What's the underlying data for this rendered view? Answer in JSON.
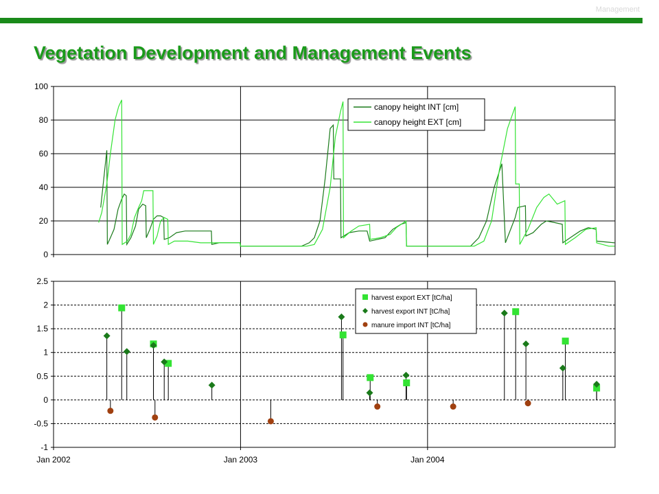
{
  "header": {
    "section_tag": "Management",
    "title": "Vegetation Development and Management Events"
  },
  "colors": {
    "dark_green": "#1a7a1a",
    "light_green": "#33e333",
    "brown": "#a04010",
    "bar": "#1a8a1a",
    "title": "#1a9a1a"
  },
  "chart_data": [
    {
      "type": "line",
      "x_axis": {
        "range": [
          "2002-01-01",
          "2005-01-01"
        ],
        "tick_labels": [
          "Jan 2002",
          "Jan 2003",
          "Jan 2004"
        ]
      },
      "ylim": [
        0,
        100
      ],
      "yticks": [
        0,
        20,
        40,
        60,
        80,
        100
      ],
      "grid": true,
      "legend": "top-right",
      "series": [
        {
          "name": "canopy height INT [cm]",
          "color": "dark_green",
          "points": [
            [
              "2002-04-03",
              28
            ],
            [
              "2002-04-15",
              62
            ],
            [
              "2002-04-16",
              6
            ],
            [
              "2002-04-22",
              10
            ],
            [
              "2002-04-29",
              15
            ],
            [
              "2002-05-07",
              27
            ],
            [
              "2002-05-14",
              33
            ],
            [
              "2002-05-19",
              36
            ],
            [
              "2002-05-23",
              35
            ],
            [
              "2002-05-24",
              6
            ],
            [
              "2002-06-01",
              10
            ],
            [
              "2002-06-10",
              17
            ],
            [
              "2002-06-16",
              27
            ],
            [
              "2002-06-24",
              30
            ],
            [
              "2002-06-30",
              29
            ],
            [
              "2002-07-01",
              10
            ],
            [
              "2002-07-08",
              15
            ],
            [
              "2002-07-15",
              21
            ],
            [
              "2002-07-22",
              23
            ],
            [
              "2002-07-29",
              23
            ],
            [
              "2002-08-04",
              22
            ],
            [
              "2002-08-05",
              9
            ],
            [
              "2002-08-15",
              10
            ],
            [
              "2002-08-29",
              13
            ],
            [
              "2002-09-15",
              14
            ],
            [
              "2002-10-15",
              14
            ],
            [
              "2002-11-05",
              14
            ],
            [
              "2002-11-06",
              6
            ],
            [
              "2002-11-20",
              7
            ],
            [
              "2002-12-31",
              7
            ],
            [
              "2003-01-01",
              5
            ],
            [
              "2003-04-30",
              5
            ],
            [
              "2003-05-15",
              7
            ],
            [
              "2003-05-25",
              10
            ],
            [
              "2003-06-05",
              20
            ],
            [
              "2003-06-15",
              45
            ],
            [
              "2003-06-25",
              75
            ],
            [
              "2003-07-01",
              77
            ],
            [
              "2003-07-02",
              45
            ],
            [
              "2003-07-15",
              45
            ],
            [
              "2003-07-16",
              10
            ],
            [
              "2003-08-01",
              13
            ],
            [
              "2003-08-20",
              14
            ],
            [
              "2003-09-05",
              14
            ],
            [
              "2003-09-10",
              8
            ],
            [
              "2003-09-25",
              9
            ],
            [
              "2003-10-10",
              10
            ],
            [
              "2003-10-25",
              15
            ],
            [
              "2003-11-10",
              18
            ],
            [
              "2003-11-20",
              19
            ],
            [
              "2003-11-21",
              5
            ],
            [
              "2003-12-31",
              5
            ],
            [
              "2004-01-01",
              5
            ],
            [
              "2004-03-25",
              5
            ],
            [
              "2004-04-10",
              10
            ],
            [
              "2004-04-25",
              20
            ],
            [
              "2004-05-10",
              40
            ],
            [
              "2004-05-25",
              54
            ],
            [
              "2004-06-01",
              7
            ],
            [
              "2004-06-20",
              22
            ],
            [
              "2004-06-25",
              28
            ],
            [
              "2004-07-10",
              29
            ],
            [
              "2004-07-11",
              11
            ],
            [
              "2004-07-25",
              13
            ],
            [
              "2004-08-10",
              18
            ],
            [
              "2004-08-20",
              20
            ],
            [
              "2004-09-05",
              19
            ],
            [
              "2004-09-20",
              18
            ],
            [
              "2004-09-21",
              7
            ],
            [
              "2004-10-10",
              11
            ],
            [
              "2004-10-25",
              14
            ],
            [
              "2004-11-10",
              16
            ],
            [
              "2004-11-25",
              15
            ],
            [
              "2004-11-26",
              8
            ],
            [
              "2004-12-31",
              7
            ]
          ]
        },
        {
          "name": "canopy height EXT [cm]",
          "color": "light_green",
          "points": [
            [
              "2002-03-30",
              19
            ],
            [
              "2002-04-05",
              25
            ],
            [
              "2002-04-15",
              42
            ],
            [
              "2002-04-22",
              60
            ],
            [
              "2002-05-01",
              80
            ],
            [
              "2002-05-08",
              88
            ],
            [
              "2002-05-14",
              92
            ],
            [
              "2002-05-15",
              6
            ],
            [
              "2002-05-25",
              8
            ],
            [
              "2002-06-01",
              12
            ],
            [
              "2002-06-08",
              22
            ],
            [
              "2002-06-16",
              28
            ],
            [
              "2002-06-22",
              32
            ],
            [
              "2002-06-26",
              38
            ],
            [
              "2002-07-14",
              38
            ],
            [
              "2002-07-15",
              6
            ],
            [
              "2002-07-22",
              11
            ],
            [
              "2002-07-29",
              20
            ],
            [
              "2002-08-05",
              22
            ],
            [
              "2002-08-12",
              21
            ],
            [
              "2002-08-13",
              6
            ],
            [
              "2002-08-25",
              8
            ],
            [
              "2002-09-20",
              8
            ],
            [
              "2002-10-15",
              7
            ],
            [
              "2002-11-10",
              7
            ],
            [
              "2002-12-31",
              7
            ],
            [
              "2003-01-01",
              5
            ],
            [
              "2003-05-10",
              5
            ],
            [
              "2003-05-25",
              6
            ],
            [
              "2003-06-10",
              15
            ],
            [
              "2003-06-25",
              40
            ],
            [
              "2003-07-05",
              70
            ],
            [
              "2003-07-15",
              85
            ],
            [
              "2003-07-20",
              91
            ],
            [
              "2003-07-21",
              10
            ],
            [
              "2003-08-05",
              14
            ],
            [
              "2003-08-20",
              17
            ],
            [
              "2003-09-10",
              18
            ],
            [
              "2003-09-11",
              9
            ],
            [
              "2003-10-01",
              10
            ],
            [
              "2003-10-20",
              12
            ],
            [
              "2003-11-01",
              16
            ],
            [
              "2003-11-20",
              20
            ],
            [
              "2003-11-21",
              5
            ],
            [
              "2003-12-31",
              5
            ],
            [
              "2004-01-01",
              5
            ],
            [
              "2004-04-01",
              5
            ],
            [
              "2004-04-20",
              8
            ],
            [
              "2004-05-05",
              20
            ],
            [
              "2004-05-20",
              50
            ],
            [
              "2004-06-05",
              75
            ],
            [
              "2004-06-20",
              88
            ],
            [
              "2004-06-21",
              42
            ],
            [
              "2004-06-28",
              42
            ],
            [
              "2004-06-29",
              6
            ],
            [
              "2004-07-15",
              15
            ],
            [
              "2004-08-01",
              28
            ],
            [
              "2004-08-15",
              34
            ],
            [
              "2004-08-25",
              36
            ],
            [
              "2004-09-10",
              30
            ],
            [
              "2004-09-25",
              32
            ],
            [
              "2004-09-26",
              6
            ],
            [
              "2004-10-15",
              10
            ],
            [
              "2004-11-05",
              15
            ],
            [
              "2004-11-25",
              16
            ],
            [
              "2004-11-26",
              7
            ],
            [
              "2004-12-20",
              5
            ],
            [
              "2004-12-31",
              5
            ]
          ]
        }
      ]
    },
    {
      "type": "scatter",
      "x_axis": {
        "range": [
          "2002-01-01",
          "2005-01-01"
        ],
        "tick_labels": [
          "Jan 2002",
          "Jan 2003",
          "Jan 2004"
        ]
      },
      "ylim": [
        -1,
        2.5
      ],
      "yticks": [
        -1,
        -0.5,
        0,
        0.5,
        1,
        1.5,
        2,
        2.5
      ],
      "ytick_labels": [
        "-1",
        "-0.5",
        "0",
        "0.5",
        "1",
        "1.5",
        "2",
        "2.5"
      ],
      "grid": "dashed",
      "legend": "top-right",
      "series": [
        {
          "name": "harvest export EXT [tC/ha]",
          "marker": "square",
          "color": "light_green",
          "points": [
            [
              "2002-05-14",
              1.94
            ],
            [
              "2002-07-15",
              1.18
            ],
            [
              "2002-08-13",
              0.77
            ],
            [
              "2003-07-20",
              1.37
            ],
            [
              "2003-09-11",
              0.47
            ],
            [
              "2003-11-21",
              0.36
            ],
            [
              "2004-06-21",
              1.86
            ],
            [
              "2004-09-26",
              1.24
            ],
            [
              "2004-11-26",
              0.25
            ]
          ]
        },
        {
          "name": "harvest export INT [tC/ha]",
          "marker": "diamond",
          "color": "dark_green",
          "points": [
            [
              "2002-04-15",
              1.35
            ],
            [
              "2002-05-24",
              1.02
            ],
            [
              "2002-07-15",
              1.15
            ],
            [
              "2002-08-05",
              0.8
            ],
            [
              "2002-11-06",
              0.31
            ],
            [
              "2003-07-17",
              1.75
            ],
            [
              "2003-09-10",
              0.15
            ],
            [
              "2003-11-20",
              0.52
            ],
            [
              "2004-05-30",
              1.83
            ],
            [
              "2004-07-11",
              1.18
            ],
            [
              "2004-09-21",
              0.67
            ],
            [
              "2004-11-26",
              0.33
            ]
          ]
        },
        {
          "name": "manure import INT [tC/ha]",
          "marker": "circle",
          "color": "brown",
          "points": [
            [
              "2002-04-22",
              -0.23
            ],
            [
              "2002-07-18",
              -0.37
            ],
            [
              "2003-03-01",
              -0.45
            ],
            [
              "2003-09-25",
              -0.14
            ],
            [
              "2004-02-20",
              -0.14
            ],
            [
              "2004-07-15",
              -0.07
            ]
          ]
        }
      ]
    }
  ]
}
